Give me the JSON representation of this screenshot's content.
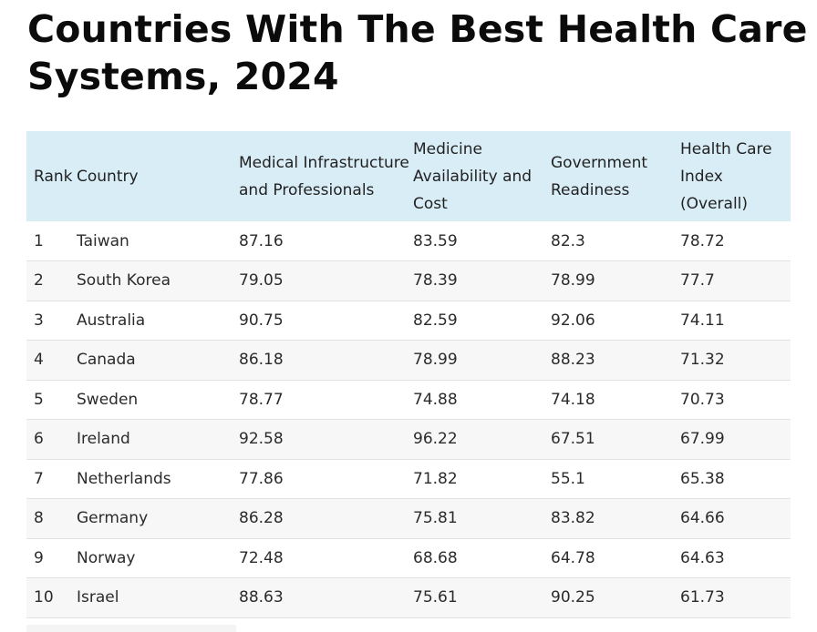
{
  "title": "Countries With The Best Health Care Systems, 2024",
  "table": {
    "headers": {
      "rank": "Rank",
      "country": "Country",
      "infrastructure": "Medical Infrastructure and Professionals",
      "medicine": "Medicine Availability and Cost",
      "government": "Government Readiness",
      "index": "Health Care Index (Overall)"
    },
    "rows": [
      {
        "rank": "1",
        "country": "Taiwan",
        "infrastructure": "87.16",
        "medicine": "83.59",
        "government": "82.3",
        "index": "78.72"
      },
      {
        "rank": "2",
        "country": "South Korea",
        "infrastructure": "79.05",
        "medicine": "78.39",
        "government": "78.99",
        "index": "77.7"
      },
      {
        "rank": "3",
        "country": "Australia",
        "infrastructure": "90.75",
        "medicine": "82.59",
        "government": "92.06",
        "index": "74.11"
      },
      {
        "rank": "4",
        "country": "Canada",
        "infrastructure": "86.18",
        "medicine": "78.99",
        "government": "88.23",
        "index": "71.32"
      },
      {
        "rank": "5",
        "country": "Sweden",
        "infrastructure": "78.77",
        "medicine": "74.88",
        "government": "74.18",
        "index": "70.73"
      },
      {
        "rank": "6",
        "country": "Ireland",
        "infrastructure": "92.58",
        "medicine": "96.22",
        "government": "67.51",
        "index": "67.99"
      },
      {
        "rank": "7",
        "country": "Netherlands",
        "infrastructure": "77.86",
        "medicine": "71.82",
        "government": "55.1",
        "index": "65.38"
      },
      {
        "rank": "8",
        "country": "Germany",
        "infrastructure": "86.28",
        "medicine": "75.81",
        "government": "83.82",
        "index": "64.66"
      },
      {
        "rank": "9",
        "country": "Norway",
        "infrastructure": "72.48",
        "medicine": "68.68",
        "government": "64.78",
        "index": "64.63"
      },
      {
        "rank": "10",
        "country": "Israel",
        "infrastructure": "88.63",
        "medicine": "75.61",
        "government": "90.25",
        "index": "61.73"
      }
    ]
  },
  "colors": {
    "header_background": "#d9edf7",
    "stripe_background": "#f7f7f7",
    "title_color": "#0b0b0b"
  }
}
